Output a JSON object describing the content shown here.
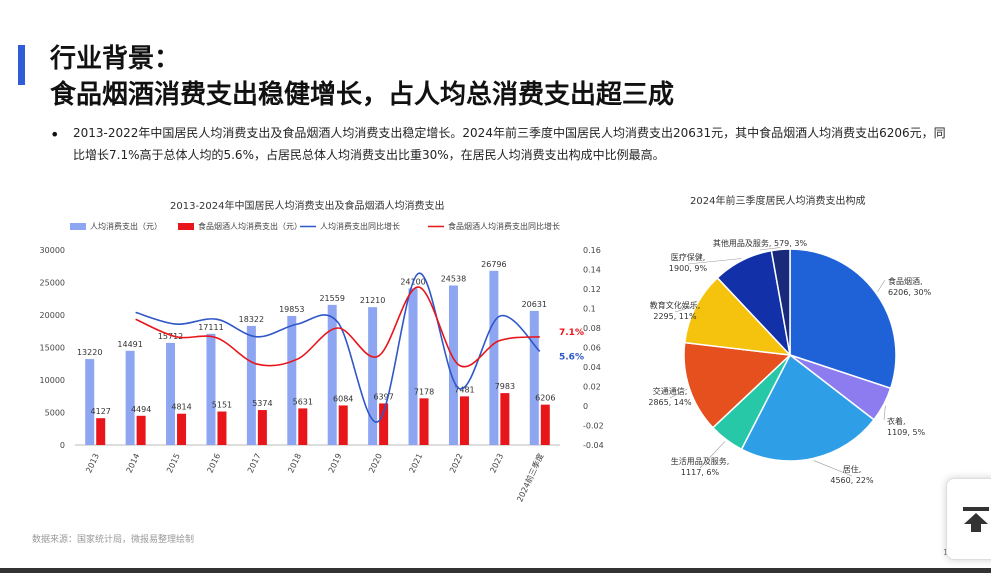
{
  "header": {
    "title_line1": "行业背景：",
    "title_line2": "食品烟酒消费支出稳健增长，占人均总消费支出超三成"
  },
  "body": {
    "bullet": "•",
    "text": "2013-2022年中国居民人均消费支出及食品烟酒人均消费支出稳定增长。2024年前三季度中国居民人均消费支出20631元，其中食品烟酒人均消费支出6206元，同比增长7.1%高于总体人均的5.6%，占居民总体人均消费支出比重30%，在居民人均消费支出构成中比例最高。"
  },
  "footer": {
    "source": "数据来源：国家统计局，微报易整理绘制",
    "page": "1"
  },
  "chart_data": [
    {
      "type": "bar",
      "title": "2013-2024年中国居民人均消费支出及食品烟酒人均消费支出",
      "categories": [
        "2013",
        "2014",
        "2015",
        "2016",
        "2017",
        "2018",
        "2019",
        "2020",
        "2021",
        "2022",
        "2023",
        "2024前三季度"
      ],
      "series": [
        {
          "name": "人均消费支出（元）",
          "kind": "bar",
          "color": "#8ea6f2",
          "values": [
            13220,
            14491,
            15712,
            17111,
            18322,
            19853,
            21559,
            21210,
            24100,
            24538,
            26796,
            20631
          ]
        },
        {
          "name": "食品烟酒人均消费支出（元）",
          "kind": "bar",
          "color": "#e8151b",
          "values": [
            4127,
            4494,
            4814,
            5151,
            5374,
            5631,
            6084,
            6397,
            7178,
            7481,
            7983,
            6206
          ]
        },
        {
          "name": "人均消费支出同比增长",
          "kind": "line",
          "color": "#2f57c8",
          "values": [
            null,
            0.096,
            0.084,
            0.089,
            0.071,
            0.084,
            0.086,
            -0.016,
            0.136,
            0.018,
            0.092,
            0.056
          ]
        },
        {
          "name": "食品烟酒人均消费支出同比增长",
          "kind": "line",
          "color": "#e8151b",
          "values": [
            null,
            0.089,
            0.071,
            0.07,
            0.043,
            0.048,
            0.08,
            0.051,
            0.122,
            0.042,
            0.067,
            0.071
          ]
        }
      ],
      "y_left": {
        "min": 0,
        "max": 30000,
        "ticks": [
          0,
          5000,
          10000,
          15000,
          20000,
          25000,
          30000
        ]
      },
      "y_right": {
        "min": -0.04,
        "max": 0.16,
        "ticks": [
          -0.04,
          -0.02,
          0,
          0.02,
          0.04,
          0.06,
          0.08,
          0.1,
          0.12,
          0.14,
          0.16
        ]
      },
      "end_labels": [
        {
          "text": "7.1%",
          "color": "#e8151b"
        },
        {
          "text": "5.6%",
          "color": "#2f57c8"
        }
      ],
      "legend_position": "top",
      "grid": false
    },
    {
      "type": "pie",
      "title": "2024年前三季度居民人均消费支出构成",
      "slices": [
        {
          "label": "食品烟酒,",
          "value_label": "6206, 30%",
          "value": 6206,
          "color": "#1f62d8"
        },
        {
          "label": "衣着,",
          "value_label": "1109, 5%",
          "value": 1109,
          "color": "#8c7cf0"
        },
        {
          "label": "居住,",
          "value_label": "4560, 22%",
          "value": 4560,
          "color": "#2e9fe6"
        },
        {
          "label": "生活用品及服务,",
          "value_label": "1117, 6%",
          "value": 1117,
          "color": "#27c8a8"
        },
        {
          "label": "交通通信,",
          "value_label": "2865, 14%",
          "value": 2865,
          "color": "#e6501e"
        },
        {
          "label": "教育文化娱乐,",
          "value_label": "2295, 11%",
          "value": 2295,
          "color": "#f5c20d"
        },
        {
          "label": "医疗保健,",
          "value_label": "1900, 9%",
          "value": 1900,
          "color": "#1230a8"
        },
        {
          "label": "其他用品及服务,",
          "value_label": "579, 3%",
          "value": 579,
          "color": "#1a2a7a"
        }
      ]
    }
  ]
}
